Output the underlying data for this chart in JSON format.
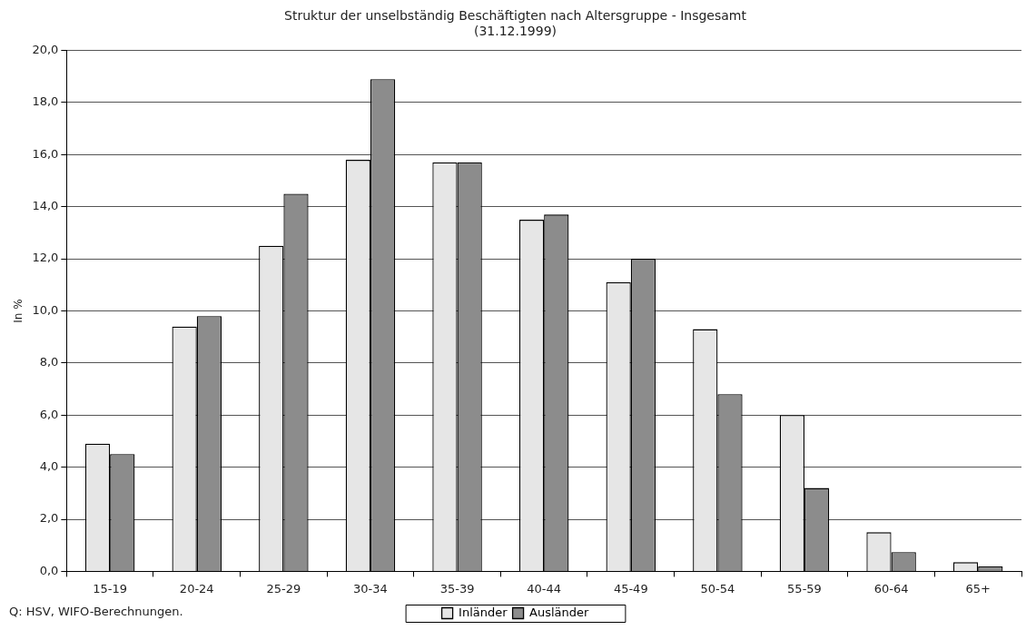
{
  "chart_data": {
    "type": "bar",
    "title": "Struktur der unselbständig Beschäftigten nach Altersgruppe - Insgesamt",
    "subtitle": "(31.12.1999)",
    "ylabel": "In %",
    "categories": [
      "15-19",
      "20-24",
      "25-29",
      "30-34",
      "35-39",
      "40-44",
      "45-49",
      "50-54",
      "55-59",
      "60-64",
      "65+"
    ],
    "series": [
      {
        "name": "Inländer",
        "color": "#e6e6e6",
        "values": [
          4.9,
          9.4,
          12.5,
          15.8,
          15.7,
          13.5,
          11.1,
          9.3,
          6.0,
          1.5,
          0.35
        ]
      },
      {
        "name": "Ausländer",
        "color": "#8c8c8c",
        "values": [
          4.5,
          9.8,
          14.5,
          18.9,
          15.7,
          13.7,
          12.0,
          6.8,
          3.2,
          0.74,
          0.19
        ]
      }
    ],
    "ylim": [
      0,
      20
    ],
    "yticks": [
      {
        "value": 0,
        "label": "0,0"
      },
      {
        "value": 2,
        "label": "2,0"
      },
      {
        "value": 4,
        "label": "4,0"
      },
      {
        "value": 6,
        "label": "6,0"
      },
      {
        "value": 8,
        "label": "8,0"
      },
      {
        "value": 10,
        "label": "10,0"
      },
      {
        "value": 12,
        "label": "12,0"
      },
      {
        "value": 14,
        "label": "14,0"
      },
      {
        "value": 16,
        "label": "16,0"
      },
      {
        "value": 18,
        "label": "18,0"
      },
      {
        "value": 20,
        "label": "20,0"
      }
    ],
    "grid": "y",
    "legend": "bottom",
    "annotations": [
      "Q: HSV, WIFO-Berechnungen."
    ]
  }
}
